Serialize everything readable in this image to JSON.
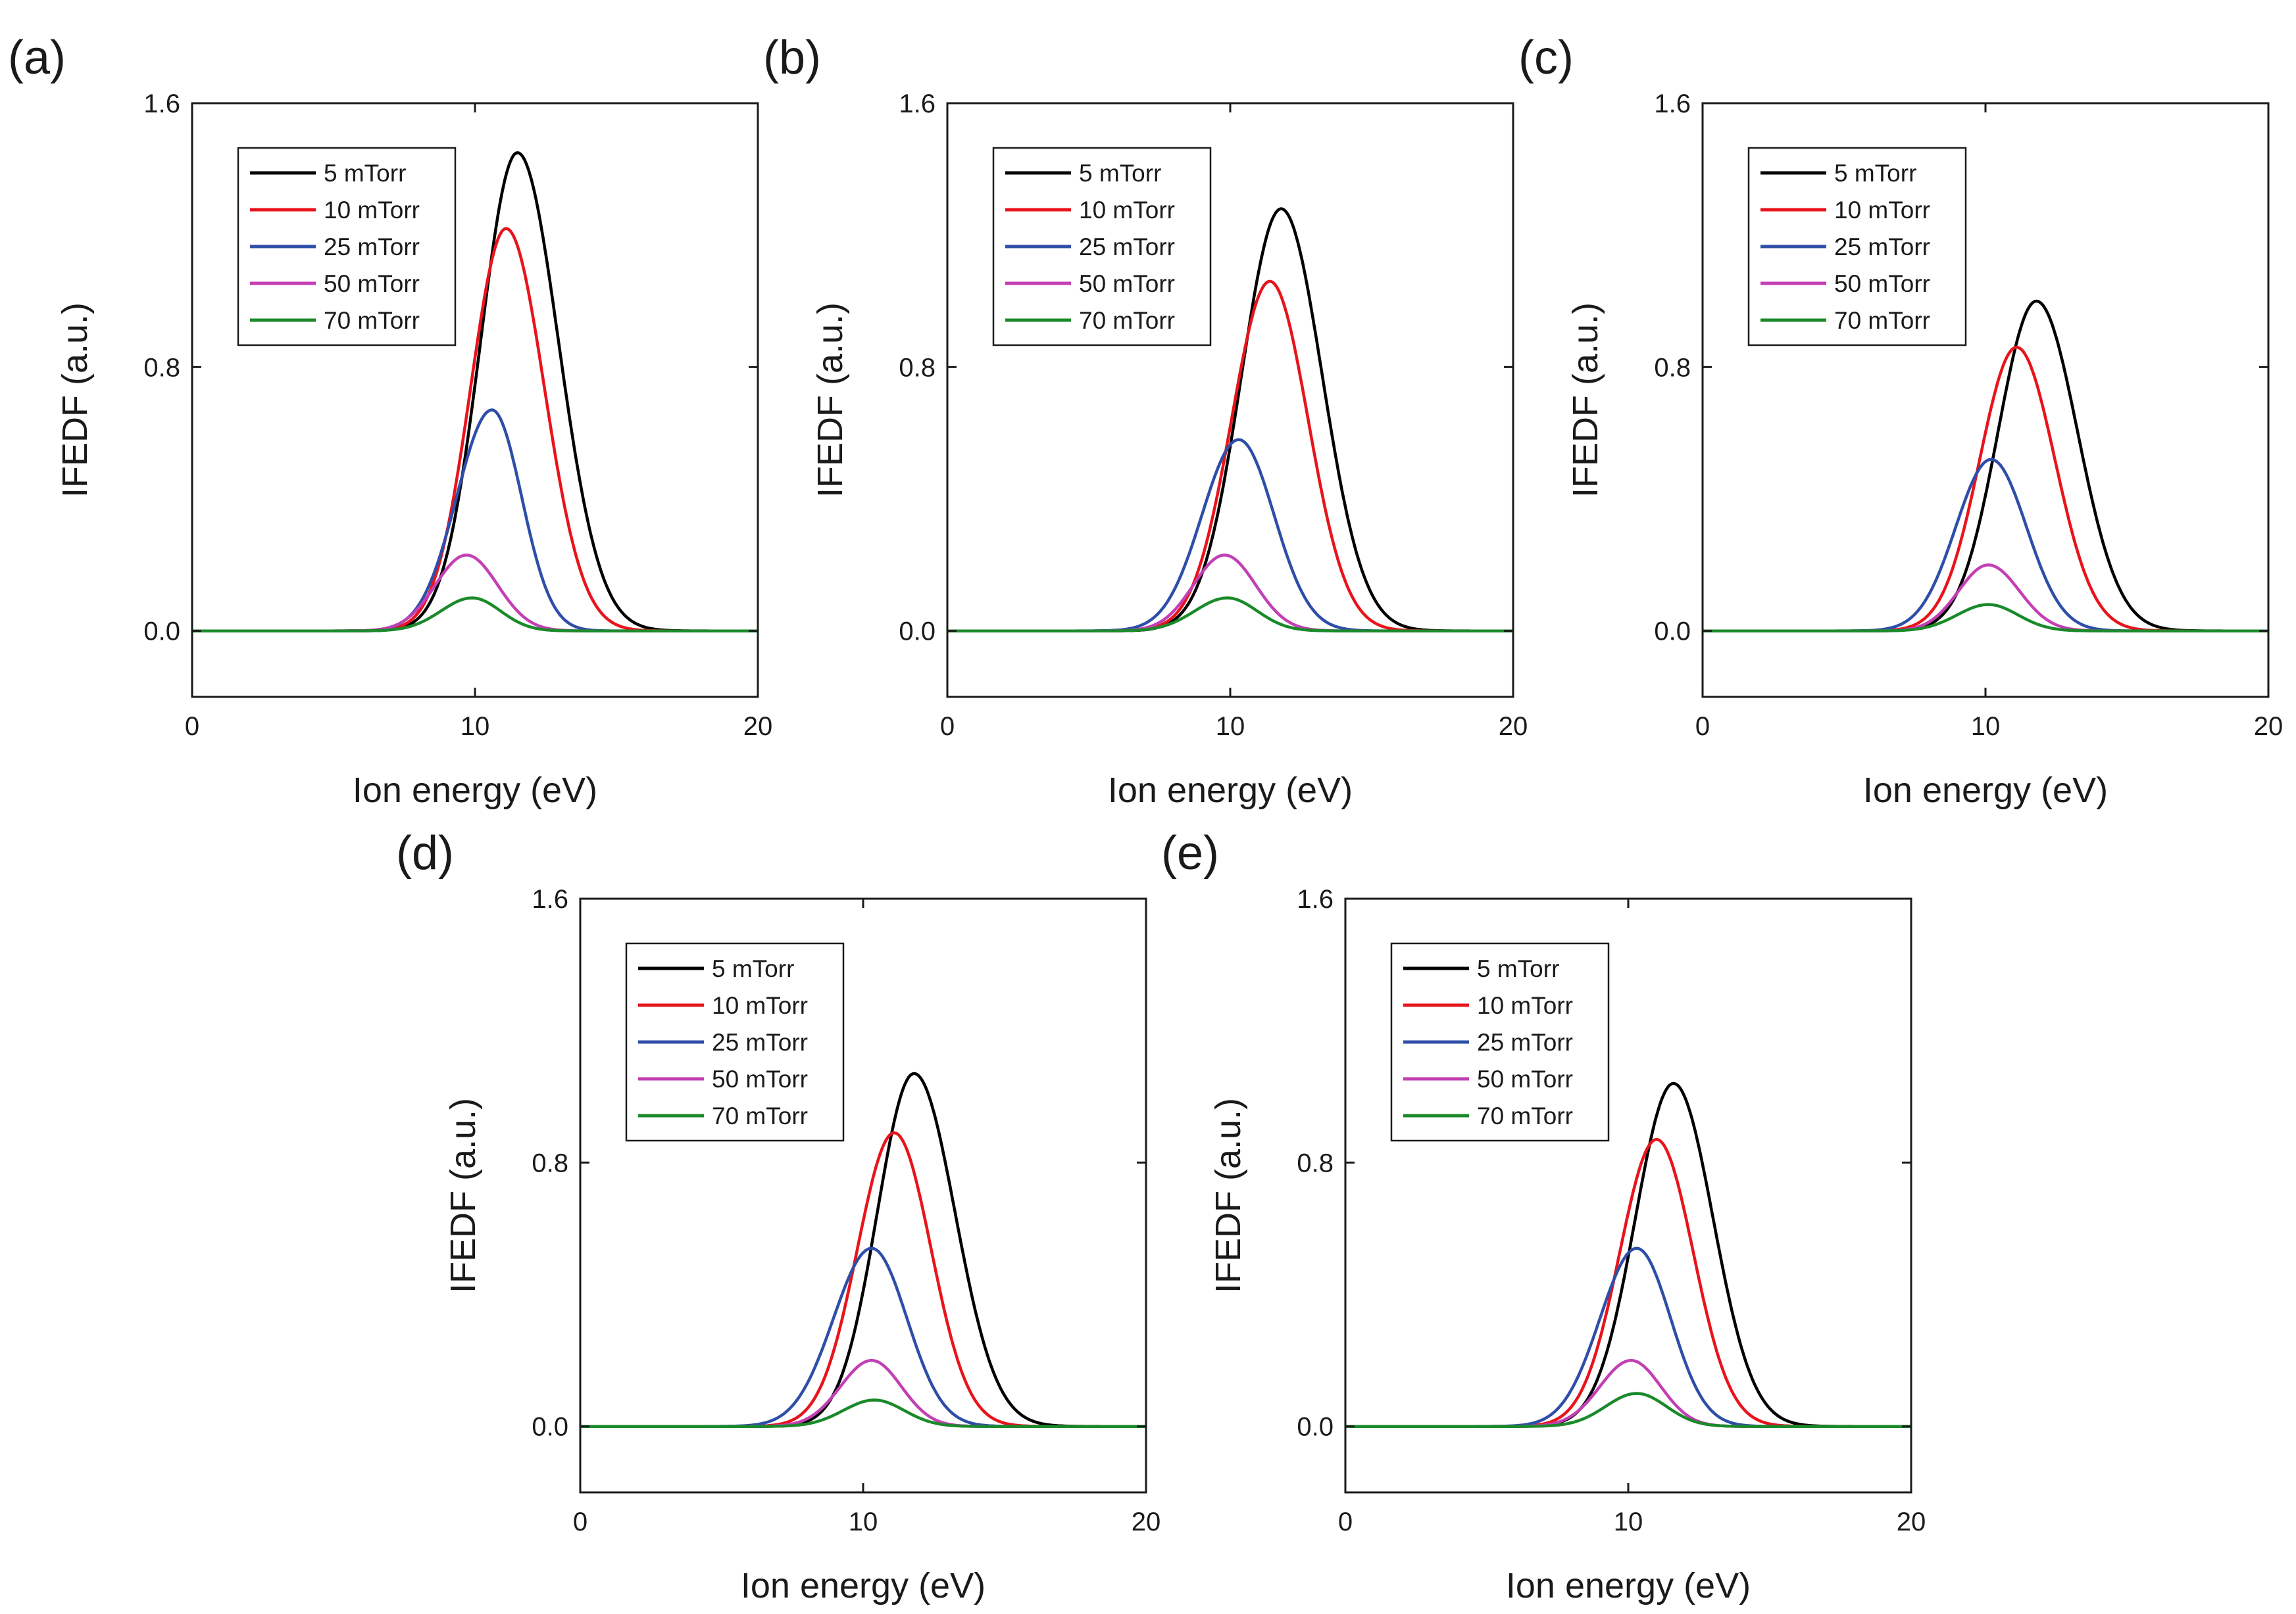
{
  "chart_data": [
    {
      "type": "line",
      "panel_label": "(a)",
      "xlabel": "Ion energy (eV)",
      "ylabel": "IFEDF (a.u.)",
      "xlim": [
        0,
        20
      ],
      "ylim": [
        -0.2,
        1.6
      ],
      "xticks": [
        0,
        10,
        20
      ],
      "xtick_labels": [
        "0",
        "10",
        "20"
      ],
      "yticks": [
        0.0,
        0.8,
        1.6
      ],
      "ytick_labels": [
        "0.0",
        "0.8",
        "1.6"
      ],
      "legend": [
        "5 mTorr",
        "10 mTorr",
        "25 mTorr",
        "50 mTorr",
        "70 mTorr"
      ],
      "series": [
        {
          "name": "5 mTorr",
          "color": "#000000",
          "peak_x": 11.5,
          "peak_y": 1.45,
          "left_width": 1.3,
          "right_width": 1.45
        },
        {
          "name": "10 mTorr",
          "color": "#e8141c",
          "peak_x": 11.1,
          "peak_y": 1.22,
          "left_width": 1.25,
          "right_width": 1.35
        },
        {
          "name": "25 mTorr",
          "color": "#2e4ea8",
          "peak_x": 10.6,
          "peak_y": 0.67,
          "left_width": 1.25,
          "right_width": 1.05
        },
        {
          "name": "50 mTorr",
          "color": "#c23fb4",
          "peak_x": 9.7,
          "peak_y": 0.23,
          "left_width": 1.1,
          "right_width": 1.1
        },
        {
          "name": "70 mTorr",
          "color": "#1a8a2a",
          "peak_x": 9.9,
          "peak_y": 0.1,
          "left_width": 1.1,
          "right_width": 1.0
        }
      ]
    },
    {
      "type": "line",
      "panel_label": "(b)",
      "xlabel": "Ion energy (eV)",
      "ylabel": "IFEDF (a.u.)",
      "xlim": [
        0,
        20
      ],
      "ylim": [
        -0.2,
        1.6
      ],
      "xticks": [
        0,
        10,
        20
      ],
      "xtick_labels": [
        "0",
        "10",
        "20"
      ],
      "yticks": [
        0.0,
        0.8,
        1.6
      ],
      "ytick_labels": [
        "0.0",
        "0.8",
        "1.6"
      ],
      "legend": [
        "5 mTorr",
        "10 mTorr",
        "25 mTorr",
        "50 mTorr",
        "70 mTorr"
      ],
      "series": [
        {
          "name": "5 mTorr",
          "color": "#000000",
          "peak_x": 11.8,
          "peak_y": 1.28,
          "left_width": 1.4,
          "right_width": 1.45
        },
        {
          "name": "10 mTorr",
          "color": "#e8141c",
          "peak_x": 11.4,
          "peak_y": 1.06,
          "left_width": 1.35,
          "right_width": 1.35
        },
        {
          "name": "25 mTorr",
          "color": "#2e4ea8",
          "peak_x": 10.3,
          "peak_y": 0.58,
          "left_width": 1.3,
          "right_width": 1.25
        },
        {
          "name": "50 mTorr",
          "color": "#c23fb4",
          "peak_x": 9.8,
          "peak_y": 0.23,
          "left_width": 1.1,
          "right_width": 1.1
        },
        {
          "name": "70 mTorr",
          "color": "#1a8a2a",
          "peak_x": 9.9,
          "peak_y": 0.1,
          "left_width": 1.15,
          "right_width": 1.05
        }
      ]
    },
    {
      "type": "line",
      "panel_label": "(c)",
      "xlabel": "Ion energy (eV)",
      "ylabel": "IFEDF (a.u.)",
      "xlim": [
        0,
        20
      ],
      "ylim": [
        -0.2,
        1.6
      ],
      "xticks": [
        0,
        10,
        20
      ],
      "xtick_labels": [
        "0",
        "10",
        "20"
      ],
      "yticks": [
        0.0,
        0.8,
        1.6
      ],
      "ytick_labels": [
        "0.0",
        "0.8",
        "1.6"
      ],
      "legend": [
        "5 mTorr",
        "10 mTorr",
        "25 mTorr",
        "50 mTorr",
        "70 mTorr"
      ],
      "series": [
        {
          "name": "5 mTorr",
          "color": "#000000",
          "peak_x": 11.8,
          "peak_y": 1.0,
          "left_width": 1.35,
          "right_width": 1.45
        },
        {
          "name": "10 mTorr",
          "color": "#e8141c",
          "peak_x": 11.1,
          "peak_y": 0.86,
          "left_width": 1.3,
          "right_width": 1.35
        },
        {
          "name": "25 mTorr",
          "color": "#2e4ea8",
          "peak_x": 10.2,
          "peak_y": 0.52,
          "left_width": 1.25,
          "right_width": 1.25
        },
        {
          "name": "50 mTorr",
          "color": "#c23fb4",
          "peak_x": 10.1,
          "peak_y": 0.2,
          "left_width": 1.05,
          "right_width": 1.1
        },
        {
          "name": "70 mTorr",
          "color": "#1a8a2a",
          "peak_x": 10.1,
          "peak_y": 0.08,
          "left_width": 1.1,
          "right_width": 1.05
        }
      ]
    },
    {
      "type": "line",
      "panel_label": "(d)",
      "xlabel": "Ion energy (eV)",
      "ylabel": "IFEDF (a.u.)",
      "xlim": [
        0,
        20
      ],
      "ylim": [
        -0.2,
        1.6
      ],
      "xticks": [
        0,
        10,
        20
      ],
      "xtick_labels": [
        "0",
        "10",
        "20"
      ],
      "yticks": [
        0.0,
        0.8,
        1.6
      ],
      "ytick_labels": [
        "0.0",
        "0.8",
        "1.6"
      ],
      "legend": [
        "5 mTorr",
        "10 mTorr",
        "25 mTorr",
        "50 mTorr",
        "70 mTorr"
      ],
      "series": [
        {
          "name": "5 mTorr",
          "color": "#000000",
          "peak_x": 11.8,
          "peak_y": 1.07,
          "left_width": 1.3,
          "right_width": 1.45
        },
        {
          "name": "10 mTorr",
          "color": "#e8141c",
          "peak_x": 11.1,
          "peak_y": 0.89,
          "left_width": 1.3,
          "right_width": 1.3
        },
        {
          "name": "25 mTorr",
          "color": "#2e4ea8",
          "peak_x": 10.3,
          "peak_y": 0.54,
          "left_width": 1.35,
          "right_width": 1.25
        },
        {
          "name": "50 mTorr",
          "color": "#c23fb4",
          "peak_x": 10.3,
          "peak_y": 0.2,
          "left_width": 1.1,
          "right_width": 1.05
        },
        {
          "name": "70 mTorr",
          "color": "#1a8a2a",
          "peak_x": 10.4,
          "peak_y": 0.08,
          "left_width": 1.1,
          "right_width": 1.05
        }
      ]
    },
    {
      "type": "line",
      "panel_label": "(e)",
      "xlabel": "Ion energy (eV)",
      "ylabel": "IFEDF (a.u.)",
      "xlim": [
        0,
        20
      ],
      "ylim": [
        -0.2,
        1.6
      ],
      "xticks": [
        0,
        10,
        20
      ],
      "xtick_labels": [
        "0",
        "10",
        "20"
      ],
      "yticks": [
        0.0,
        0.8,
        1.6
      ],
      "ytick_labels": [
        "0.0",
        "0.8",
        "1.6"
      ],
      "legend": [
        "5 mTorr",
        "10 mTorr",
        "25 mTorr",
        "50 mTorr",
        "70 mTorr"
      ],
      "series": [
        {
          "name": "5 mTorr",
          "color": "#000000",
          "peak_x": 11.6,
          "peak_y": 1.04,
          "left_width": 1.35,
          "right_width": 1.4
        },
        {
          "name": "10 mTorr",
          "color": "#e8141c",
          "peak_x": 11.0,
          "peak_y": 0.87,
          "left_width": 1.3,
          "right_width": 1.3
        },
        {
          "name": "25 mTorr",
          "color": "#2e4ea8",
          "peak_x": 10.3,
          "peak_y": 0.54,
          "left_width": 1.3,
          "right_width": 1.2
        },
        {
          "name": "50 mTorr",
          "color": "#c23fb4",
          "peak_x": 10.1,
          "peak_y": 0.2,
          "left_width": 1.1,
          "right_width": 1.05
        },
        {
          "name": "70 mTorr",
          "color": "#1a8a2a",
          "peak_x": 10.3,
          "peak_y": 0.1,
          "left_width": 1.1,
          "right_width": 1.05
        }
      ]
    }
  ]
}
